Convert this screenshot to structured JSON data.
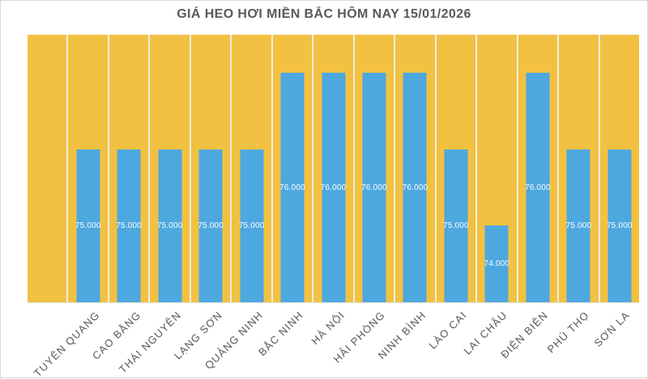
{
  "chart_data": {
    "type": "bar",
    "title": "GIÁ HEO HƠI MIỀN BẮC HÔM NAY 15/01/2026",
    "categories": [
      "",
      "TUYÊN QUANG",
      "CAO BẰNG",
      "THÁI NGUYÊN",
      "LẠNG SƠN",
      "QUẢNG NINH",
      "BẮC NINH",
      "HÀ NỘI",
      "HẢI PHÒNG",
      "NINH BÌNH",
      "LÀO CAI",
      "LAI CHÂU",
      "ĐIỆN BIÊN",
      "PHÚ THỌ",
      "SƠN LA"
    ],
    "values": [
      null,
      75000,
      75000,
      75000,
      75000,
      75000,
      76000,
      76000,
      76000,
      76000,
      75000,
      74000,
      76000,
      75000,
      75000
    ],
    "data_labels": [
      "",
      "75.000",
      "75.000",
      "75.000",
      "75.000",
      "75.000",
      "76.000",
      "76.000",
      "76.000",
      "76.000",
      "75.000",
      "74.000",
      "76.000",
      "75.000",
      "75.000"
    ],
    "ylim": [
      73000,
      76500
    ],
    "xlabel": "",
    "ylabel": "",
    "legend": "none",
    "grid": "vertical white column separators only",
    "x_label_rotation_deg": 45,
    "data_label_position": "inside-center",
    "notes": "first column is blank (no bar, no axis label)",
    "colors": {
      "plot_background": "#F2C142",
      "bar": "#4DA8E0",
      "separator": "#F0EDE2",
      "title_text": "#595959",
      "axis_label_text": "#595959",
      "data_label_text": "#FFFFFF",
      "frame_border": "#D9D9D9"
    }
  }
}
